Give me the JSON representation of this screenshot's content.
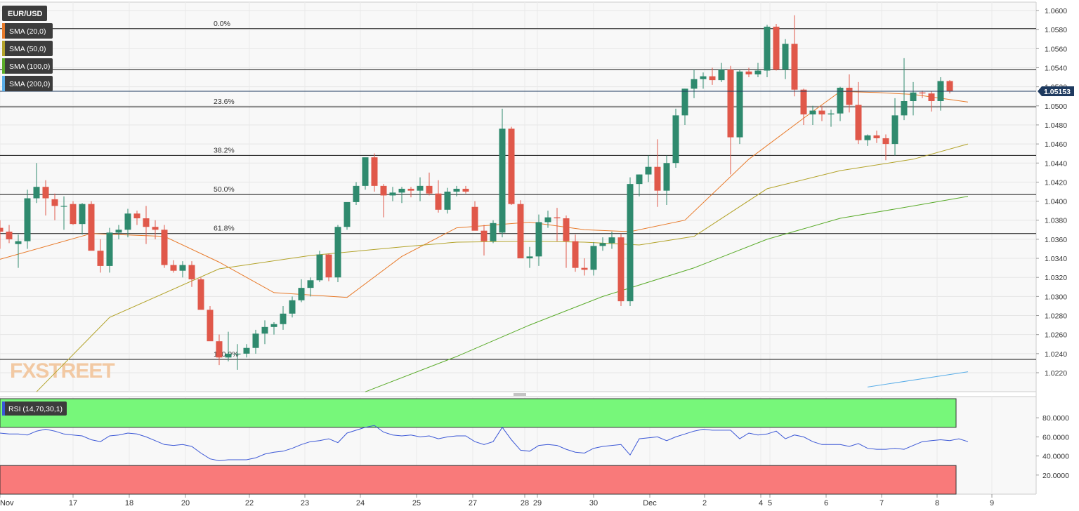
{
  "chart_data": {
    "type": "candlestick",
    "symbol": "EUR/USD",
    "last_price": "1.05153",
    "watermark": "FXSTREET",
    "indicators": [
      {
        "label": "SMA (20,0)",
        "color": "#e87a2a"
      },
      {
        "label": "SMA (50,0)",
        "color": "#b3a32a"
      },
      {
        "label": "SMA (100,0)",
        "color": "#5aab2a"
      },
      {
        "label": "SMA (200,0)",
        "color": "#5aaee8"
      }
    ],
    "colors": {
      "up": "#2f8a6e",
      "down": "#e0584a",
      "rsi": "#3b57d6",
      "overbought": "#77f77a",
      "oversold": "#f97a7a"
    },
    "ylim": [
      1.0203,
      1.0606
    ],
    "yticks": [
      "1.0600",
      "1.0580",
      "1.0560",
      "1.0540",
      "1.0520",
      "1.0500",
      "1.0480",
      "1.0460",
      "1.0440",
      "1.0420",
      "1.0400",
      "1.0380",
      "1.0360",
      "1.0340",
      "1.0320",
      "1.0300",
      "1.0280",
      "1.0260",
      "1.0240",
      "1.0220"
    ],
    "xticks": [
      "Nov",
      "17",
      "18",
      "20",
      "22",
      "23",
      "24",
      "25",
      "27",
      "28",
      "29",
      "30",
      "Dec",
      "2",
      "4",
      "5",
      "6",
      "7",
      "8",
      "9"
    ],
    "fibonacci": [
      {
        "label": "0.0%",
        "price": 1.0581
      },
      {
        "label": "23.6%",
        "price": 1.0499
      },
      {
        "label": "38.2%",
        "price": 1.0448
      },
      {
        "label": "50.0%",
        "price": 1.0407
      },
      {
        "label": "61.8%",
        "price": 1.0366
      },
      {
        "label": "100.0%",
        "price": 1.0234
      }
    ],
    "resistance": 1.0538,
    "candles": [
      [
        1.0372,
        1.038,
        1.035,
        1.0368
      ],
      [
        1.0368,
        1.0375,
        1.0356,
        1.036
      ],
      [
        1.0355,
        1.0365,
        1.033,
        1.0358
      ],
      [
        1.0358,
        1.0412,
        1.035,
        1.0403
      ],
      [
        1.0403,
        1.044,
        1.0398,
        1.0415
      ],
      [
        1.0415,
        1.0422,
        1.0385,
        1.0403
      ],
      [
        1.0402,
        1.0408,
        1.038,
        1.0395
      ],
      [
        1.0395,
        1.0405,
        1.037,
        1.0395
      ],
      [
        1.0397,
        1.04,
        1.0375,
        1.0376
      ],
      [
        1.0376,
        1.0398,
        1.0365,
        1.0397
      ],
      [
        1.0397,
        1.04,
        1.035,
        1.0348
      ],
      [
        1.0348,
        1.036,
        1.0325,
        1.0332
      ],
      [
        1.0332,
        1.0372,
        1.0325,
        1.0367
      ],
      [
        1.0367,
        1.0375,
        1.036,
        1.037
      ],
      [
        1.037,
        1.0392,
        1.0362,
        1.0387
      ],
      [
        1.0387,
        1.039,
        1.0375,
        1.0382
      ],
      [
        1.0382,
        1.0395,
        1.0355,
        1.0373
      ],
      [
        1.0373,
        1.038,
        1.036,
        1.037
      ],
      [
        1.037,
        1.0375,
        1.033,
        1.0333
      ],
      [
        1.0333,
        1.0338,
        1.0325,
        1.0327
      ],
      [
        1.0327,
        1.0337,
        1.032,
        1.0333
      ],
      [
        1.0333,
        1.0337,
        1.031,
        1.0318
      ],
      [
        1.0318,
        1.032,
        1.029,
        1.0286
      ],
      [
        1.0286,
        1.029,
        1.0255,
        1.0253
      ],
      [
        1.0253,
        1.026,
        1.0228,
        1.0236
      ],
      [
        1.0236,
        1.0263,
        1.0232,
        1.024
      ],
      [
        1.024,
        1.025,
        1.0223,
        1.024
      ],
      [
        1.024,
        1.025,
        1.0236,
        1.0246
      ],
      [
        1.0246,
        1.0265,
        1.024,
        1.0261
      ],
      [
        1.0261,
        1.0275,
        1.025,
        1.0268
      ],
      [
        1.0268,
        1.0273,
        1.026,
        1.0271
      ],
      [
        1.0271,
        1.029,
        1.0265,
        1.0282
      ],
      [
        1.0282,
        1.03,
        1.0278,
        1.0296
      ],
      [
        1.0296,
        1.0318,
        1.0294,
        1.0309
      ],
      [
        1.0309,
        1.032,
        1.03,
        1.0317
      ],
      [
        1.0317,
        1.0348,
        1.0315,
        1.0344
      ],
      [
        1.0344,
        1.0345,
        1.0316,
        1.032
      ],
      [
        1.032,
        1.0375,
        1.0315,
        1.0373
      ],
      [
        1.0373,
        1.0398,
        1.037,
        1.0399
      ],
      [
        1.0399,
        1.042,
        1.0396,
        1.0416
      ],
      [
        1.0416,
        1.0445,
        1.0412,
        1.0446
      ],
      [
        1.0446,
        1.045,
        1.041,
        1.0416
      ],
      [
        1.0416,
        1.0418,
        1.0383,
        1.0406
      ],
      [
        1.0406,
        1.0415,
        1.04,
        1.0409
      ],
      [
        1.0409,
        1.0415,
        1.0398,
        1.0413
      ],
      [
        1.0413,
        1.0415,
        1.0404,
        1.0411
      ],
      [
        1.0411,
        1.0425,
        1.04,
        1.0416
      ],
      [
        1.0416,
        1.043,
        1.0406,
        1.0408
      ],
      [
        1.0408,
        1.0422,
        1.0388,
        1.0391
      ],
      [
        1.0391,
        1.0414,
        1.0387,
        1.041
      ],
      [
        1.041,
        1.0416,
        1.0405,
        1.0413
      ],
      [
        1.0413,
        1.0416,
        1.0408,
        1.041
      ],
      [
        1.0394,
        1.04,
        1.037,
        1.0369
      ],
      [
        1.0369,
        1.0375,
        1.0343,
        1.0358
      ],
      [
        1.0358,
        1.038,
        1.0356,
        1.0377
      ],
      [
        1.0367,
        1.0497,
        1.0362,
        1.0476
      ],
      [
        1.0476,
        1.0478,
        1.0396,
        1.0397
      ],
      [
        1.0397,
        1.0401,
        1.034,
        1.034
      ],
      [
        1.034,
        1.0352,
        1.033,
        1.0342
      ],
      [
        1.0342,
        1.0386,
        1.0332,
        1.0378
      ],
      [
        1.0378,
        1.039,
        1.0372,
        1.0383
      ],
      [
        1.0383,
        1.0393,
        1.0358,
        1.0382
      ],
      [
        1.0382,
        1.0385,
        1.033,
        1.0358
      ],
      [
        1.0358,
        1.0365,
        1.0326,
        1.033
      ],
      [
        1.033,
        1.034,
        1.0322,
        1.0328
      ],
      [
        1.0328,
        1.0357,
        1.0322,
        1.0353
      ],
      [
        1.0353,
        1.0362,
        1.0348,
        1.0356
      ],
      [
        1.0356,
        1.0368,
        1.035,
        1.0362
      ],
      [
        1.0362,
        1.0366,
        1.029,
        1.0295
      ],
      [
        1.0295,
        1.0425,
        1.029,
        1.0418
      ],
      [
        1.0418,
        1.0428,
        1.0405,
        1.0428
      ],
      [
        1.0428,
        1.0448,
        1.042,
        1.0436
      ],
      [
        1.0436,
        1.0465,
        1.0394,
        1.0411
      ],
      [
        1.0411,
        1.0448,
        1.0396,
        1.044
      ],
      [
        1.044,
        1.0497,
        1.0435,
        1.049
      ],
      [
        1.049,
        1.0518,
        1.048,
        1.0518
      ],
      [
        1.0518,
        1.0538,
        1.0508,
        1.0528
      ],
      [
        1.0528,
        1.0535,
        1.0518,
        1.0531
      ],
      [
        1.0531,
        1.054,
        1.0522,
        1.0527
      ],
      [
        1.0527,
        1.0545,
        1.0525,
        1.0538
      ],
      [
        1.0538,
        1.0542,
        1.0428,
        1.0467
      ],
      [
        1.0467,
        1.0538,
        1.046,
        1.0536
      ],
      [
        1.0536,
        1.054,
        1.053,
        1.0533
      ],
      [
        1.0533,
        1.0545,
        1.053,
        1.0537
      ],
      [
        1.0537,
        1.0585,
        1.053,
        1.0583
      ],
      [
        1.0583,
        1.0586,
        1.0537,
        1.0538
      ],
      [
        1.0538,
        1.057,
        1.0528,
        1.0565
      ],
      [
        1.0565,
        1.0595,
        1.051,
        1.0517
      ],
      [
        1.0517,
        1.0518,
        1.048,
        1.0491
      ],
      [
        1.0491,
        1.05,
        1.048,
        1.0495
      ],
      [
        1.0495,
        1.05,
        1.0484,
        1.0491
      ],
      [
        1.0491,
        1.0496,
        1.0478,
        1.0492
      ],
      [
        1.0492,
        1.052,
        1.0484,
        1.0519
      ],
      [
        1.0519,
        1.0533,
        1.0493,
        1.0501
      ],
      [
        1.0501,
        1.0525,
        1.046,
        1.0464
      ],
      [
        1.0464,
        1.047,
        1.0458,
        1.0469
      ],
      [
        1.0469,
        1.0474,
        1.0461,
        1.0466
      ],
      [
        1.0466,
        1.047,
        1.0443,
        1.046
      ],
      [
        1.046,
        1.0508,
        1.0448,
        1.049
      ],
      [
        1.049,
        1.055,
        1.0485,
        1.0505
      ],
      [
        1.0505,
        1.0525,
        1.049,
        1.0514
      ],
      [
        1.0514,
        1.0516,
        1.0508,
        1.0513
      ],
      [
        1.0513,
        1.0515,
        1.0494,
        1.0505
      ],
      [
        1.0505,
        1.053,
        1.0495,
        1.0526
      ],
      [
        1.0526,
        1.0527,
        1.0513,
        1.0515
      ]
    ],
    "sma20": [
      [
        0,
        1.0339
      ],
      [
        10,
        1.0366
      ],
      [
        18,
        1.0363
      ],
      [
        24,
        1.0336
      ],
      [
        30,
        1.0304
      ],
      [
        38,
        1.0299
      ],
      [
        44,
        1.0342
      ],
      [
        50,
        1.0372
      ],
      [
        58,
        1.0378
      ],
      [
        64,
        1.037
      ],
      [
        69,
        1.0368
      ],
      [
        75,
        1.038
      ],
      [
        82,
        1.0444
      ],
      [
        88,
        1.0487
      ],
      [
        92,
        1.0515
      ],
      [
        96,
        1.0514
      ],
      [
        100,
        1.0512
      ],
      [
        106,
        1.0504
      ]
    ],
    "sma50": [
      [
        4,
        1.02
      ],
      [
        12,
        1.0278
      ],
      [
        24,
        1.0329
      ],
      [
        34,
        1.0343
      ],
      [
        44,
        1.0352
      ],
      [
        50,
        1.0357
      ],
      [
        58,
        1.0358
      ],
      [
        64,
        1.0357
      ],
      [
        70,
        1.0354
      ],
      [
        76,
        1.0363
      ],
      [
        84,
        1.0413
      ],
      [
        92,
        1.0432
      ],
      [
        100,
        1.0444
      ],
      [
        106,
        1.046
      ]
    ],
    "sma100": [
      [
        40,
        1.02
      ],
      [
        50,
        1.0237
      ],
      [
        58,
        1.027
      ],
      [
        66,
        1.03
      ],
      [
        76,
        1.033
      ],
      [
        84,
        1.036
      ],
      [
        92,
        1.0382
      ],
      [
        100,
        1.0395
      ],
      [
        106,
        1.0405
      ]
    ],
    "sma200": [
      [
        95,
        1.0205
      ],
      [
        106,
        1.0221
      ]
    ],
    "rsi": {
      "label": "RSI (14,70,30,1)",
      "ylim": [
        0,
        100
      ],
      "yticks": [
        "80.0000",
        "60.0000",
        "40.0000",
        "20.0000"
      ],
      "overbought": 70,
      "oversold": 30,
      "values": [
        64,
        63,
        63,
        62,
        66,
        68,
        66,
        63,
        62,
        61,
        57,
        55,
        61,
        62,
        64,
        63,
        60,
        56,
        52,
        51,
        52,
        50,
        43,
        37,
        35,
        36,
        36,
        36,
        38,
        42,
        44,
        45,
        48,
        52,
        55,
        56,
        58,
        54,
        64,
        67,
        70,
        72,
        65,
        62,
        61,
        62,
        60,
        61,
        58,
        60,
        61,
        61,
        55,
        52,
        55,
        70,
        57,
        46,
        45,
        51,
        52,
        51,
        47,
        44,
        43,
        48,
        50,
        51,
        52,
        41,
        58,
        59,
        60,
        56,
        60,
        63,
        66,
        68,
        67,
        67,
        67,
        58,
        64,
        62,
        63,
        66,
        58,
        62,
        60,
        55,
        52,
        52,
        52,
        50,
        53,
        48,
        47,
        47,
        48,
        47,
        51,
        55,
        56,
        57,
        56,
        58,
        55
      ]
    }
  }
}
